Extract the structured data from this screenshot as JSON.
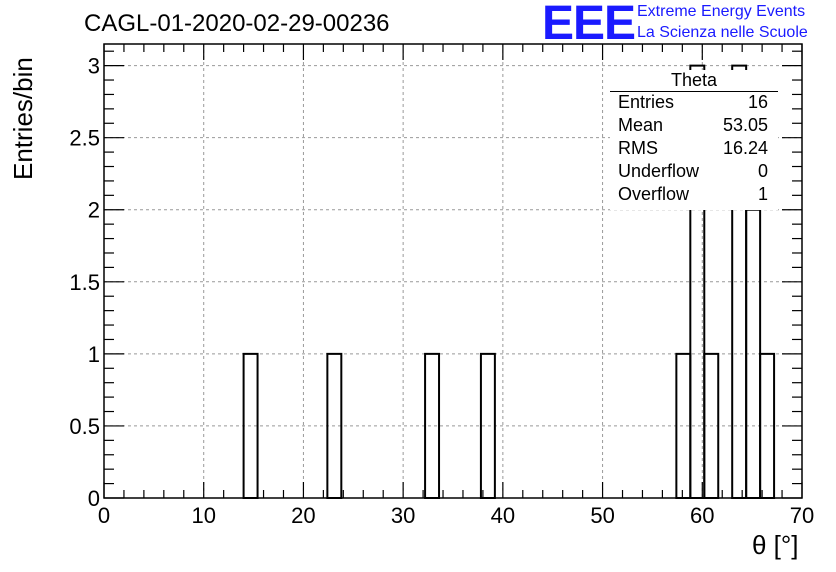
{
  "title": "CAGL-01-2020-02-29-00236",
  "logo": {
    "mark": "EEE",
    "line1": "Extreme Energy Events",
    "line2": "La Scienza nelle Scuole",
    "color": "#1a1aff"
  },
  "stats": {
    "title": "Theta",
    "rows": [
      {
        "key": "Entries",
        "value": "16"
      },
      {
        "key": "Mean",
        "value": "53.05"
      },
      {
        "key": "RMS",
        "value": "16.24"
      },
      {
        "key": "Underflow",
        "value": "0"
      },
      {
        "key": "Overflow",
        "value": "1"
      }
    ]
  },
  "chart_data": {
    "type": "bar",
    "title": "CAGL-01-2020-02-29-00236",
    "xlabel": "θ [°]",
    "ylabel": "Entries/bin",
    "xlim": [
      0,
      70
    ],
    "ylim": [
      0,
      3.15
    ],
    "bin_width": 1.4,
    "x_ticks": [
      0,
      10,
      20,
      30,
      40,
      50,
      60,
      70
    ],
    "y_ticks": [
      0,
      0.5,
      1,
      1.5,
      2,
      2.5,
      3
    ],
    "x_tick_labels": [
      "0",
      "10",
      "20",
      "30",
      "40",
      "50",
      "60",
      "70"
    ],
    "y_tick_labels": [
      "0",
      "0.5",
      "1",
      "1.5",
      "2",
      "2.5",
      "3"
    ],
    "grid": true,
    "bins": [
      {
        "x": 14.0,
        "value": 1
      },
      {
        "x": 22.4,
        "value": 1
      },
      {
        "x": 32.2,
        "value": 1
      },
      {
        "x": 37.8,
        "value": 1
      },
      {
        "x": 57.4,
        "value": 1
      },
      {
        "x": 58.8,
        "value": 3
      },
      {
        "x": 60.2,
        "value": 1
      },
      {
        "x": 63.0,
        "value": 3
      },
      {
        "x": 64.4,
        "value": 2
      },
      {
        "x": 65.8,
        "value": 1
      }
    ]
  }
}
